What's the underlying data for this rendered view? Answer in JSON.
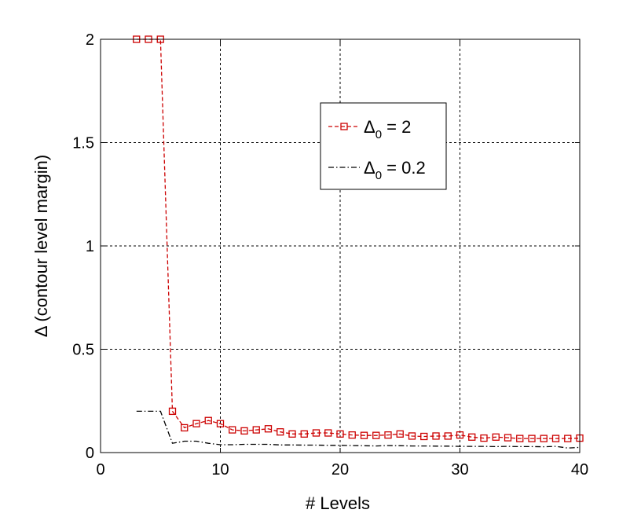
{
  "chart_data": {
    "type": "line",
    "title": "",
    "xlabel": "# Levels",
    "ylabel": "Δ (contour level margin)",
    "xlim": [
      0,
      40
    ],
    "ylim": [
      0,
      2
    ],
    "xticks": [
      0,
      10,
      20,
      30,
      40
    ],
    "yticks": [
      0,
      0.5,
      1,
      1.5,
      2
    ],
    "xtick_labels": [
      "0",
      "10",
      "20",
      "30",
      "40"
    ],
    "ytick_labels": [
      "0",
      "0.5",
      "1",
      "1.5",
      "2"
    ],
    "grid": true,
    "legend_position": "top-right",
    "series": [
      {
        "name_main": "Δ",
        "name_sub": "0",
        "name_rest": " = 2",
        "color": "#cc0000",
        "line_style": "dashed",
        "marker": "square",
        "x": [
          3,
          4,
          5,
          6,
          7,
          8,
          9,
          10,
          11,
          12,
          13,
          14,
          15,
          16,
          17,
          18,
          19,
          20,
          21,
          22,
          23,
          24,
          25,
          26,
          27,
          28,
          29,
          30,
          31,
          32,
          33,
          34,
          35,
          36,
          37,
          38,
          39,
          40
        ],
        "y": [
          2,
          2,
          2,
          0.2,
          0.12,
          0.14,
          0.155,
          0.14,
          0.11,
          0.105,
          0.11,
          0.115,
          0.1,
          0.09,
          0.09,
          0.095,
          0.095,
          0.09,
          0.085,
          0.083,
          0.083,
          0.085,
          0.09,
          0.08,
          0.078,
          0.08,
          0.08,
          0.085,
          0.075,
          0.07,
          0.075,
          0.072,
          0.068,
          0.068,
          0.068,
          0.068,
          0.068,
          0.07
        ]
      },
      {
        "name_main": "Δ",
        "name_sub": "0",
        "name_rest": " = 0.2",
        "color": "#000000",
        "line_style": "dashdot",
        "marker": "none",
        "x": [
          3,
          4,
          5,
          6,
          7,
          8,
          9,
          10,
          11,
          12,
          13,
          14,
          15,
          16,
          17,
          18,
          19,
          20,
          21,
          22,
          23,
          24,
          25,
          26,
          27,
          28,
          29,
          30,
          31,
          32,
          33,
          34,
          35,
          36,
          37,
          38,
          39,
          40
        ],
        "y": [
          0.2,
          0.2,
          0.2,
          0.045,
          0.055,
          0.055,
          0.045,
          0.038,
          0.038,
          0.04,
          0.04,
          0.04,
          0.037,
          0.037,
          0.036,
          0.036,
          0.035,
          0.035,
          0.034,
          0.033,
          0.032,
          0.034,
          0.033,
          0.032,
          0.032,
          0.031,
          0.031,
          0.03,
          0.03,
          0.03,
          0.029,
          0.03,
          0.029,
          0.029,
          0.028,
          0.03,
          0.022,
          0.025
        ]
      }
    ]
  }
}
